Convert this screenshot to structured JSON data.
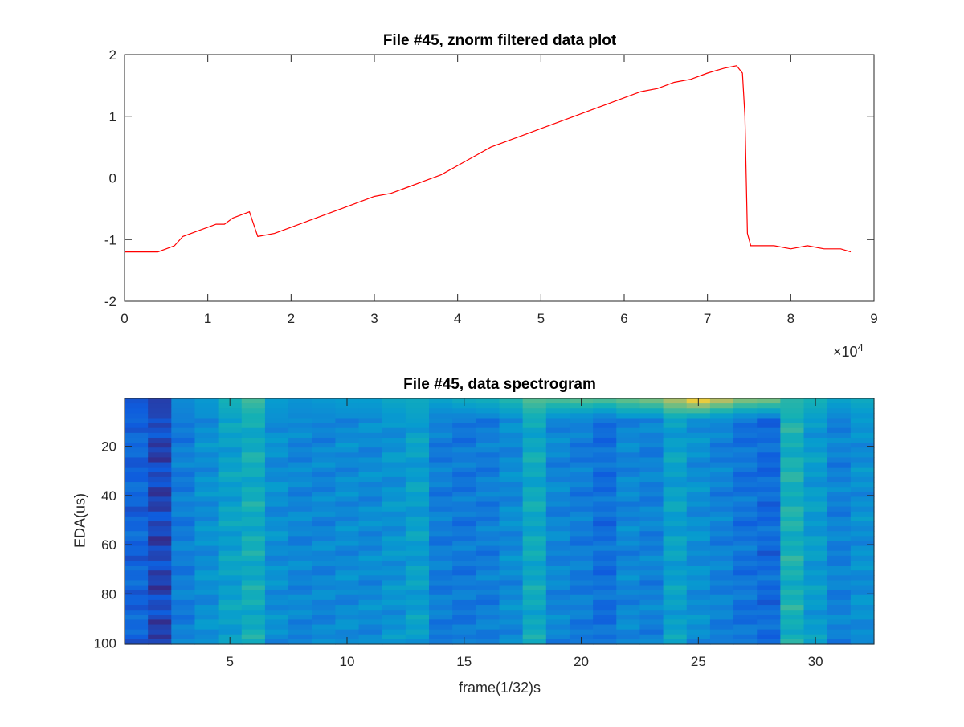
{
  "chart_data": [
    {
      "type": "line",
      "title": "File #45, znorm filtered data plot",
      "xlabel": "",
      "ylabel": "",
      "x_exponent_label": "×10",
      "x_exponent_power": "4",
      "xlim": [
        0,
        90000
      ],
      "ylim": [
        -2,
        2
      ],
      "x_ticks": [
        0,
        10000,
        20000,
        30000,
        40000,
        50000,
        60000,
        70000,
        80000,
        90000
      ],
      "x_tick_labels": [
        "0",
        "1",
        "2",
        "3",
        "4",
        "5",
        "6",
        "7",
        "8",
        "9"
      ],
      "y_ticks": [
        2,
        1,
        0,
        -1,
        -2
      ],
      "y_tick_labels": [
        "2",
        "1",
        "0",
        "-1",
        "-2"
      ],
      "grid": false,
      "series": [
        {
          "color": "#ff0000",
          "x": [
            0,
            4000,
            5000,
            6000,
            7000,
            8000,
            9000,
            10000,
            11000,
            12000,
            13000,
            14000,
            15000,
            16000,
            18000,
            20000,
            22000,
            24000,
            26000,
            28000,
            30000,
            32000,
            34000,
            36000,
            38000,
            40000,
            42000,
            44000,
            46000,
            48000,
            50000,
            52000,
            54000,
            56000,
            58000,
            60000,
            62000,
            64000,
            66000,
            68000,
            70000,
            72000,
            73500,
            74200,
            74500,
            74800,
            75200,
            76000,
            78000,
            80000,
            82000,
            84000,
            86000,
            87200
          ],
          "y": [
            -1.2,
            -1.2,
            -1.15,
            -1.1,
            -0.95,
            -0.9,
            -0.85,
            -0.8,
            -0.75,
            -0.75,
            -0.65,
            -0.6,
            -0.55,
            -0.95,
            -0.9,
            -0.8,
            -0.7,
            -0.6,
            -0.5,
            -0.4,
            -0.3,
            -0.25,
            -0.15,
            -0.05,
            0.05,
            0.2,
            0.35,
            0.5,
            0.6,
            0.7,
            0.8,
            0.9,
            1.0,
            1.1,
            1.2,
            1.3,
            1.4,
            1.45,
            1.55,
            1.6,
            1.7,
            1.78,
            1.82,
            1.7,
            1.0,
            -0.9,
            -1.1,
            -1.1,
            -1.1,
            -1.15,
            -1.1,
            -1.15,
            -1.15,
            -1.2
          ]
        }
      ]
    },
    {
      "type": "heatmap",
      "title": "File #45, data spectrogram",
      "xlabel": "frame(1/32)s",
      "ylabel": "EDA(us)",
      "n_cols": 32,
      "n_rows": 50,
      "x_ticks": [
        5,
        10,
        15,
        20,
        25,
        30
      ],
      "x_tick_labels": [
        "5",
        "10",
        "15",
        "20",
        "25",
        "30"
      ],
      "y_ticks": [
        20,
        40,
        60,
        80,
        100
      ],
      "y_tick_labels": [
        "20",
        "40",
        "60",
        "80",
        "100"
      ],
      "xlim": [
        0.5,
        32.5
      ],
      "ylim": [
        0.5,
        100.5
      ],
      "colormap": "parula",
      "column_levels": [
        0.18,
        0.08,
        0.28,
        0.36,
        0.45,
        0.52,
        0.36,
        0.32,
        0.32,
        0.34,
        0.34,
        0.38,
        0.44,
        0.28,
        0.26,
        0.28,
        0.34,
        0.5,
        0.32,
        0.28,
        0.22,
        0.32,
        0.3,
        0.45,
        0.36,
        0.3,
        0.24,
        0.2,
        0.55,
        0.42,
        0.3,
        0.36
      ],
      "top_band_levels": [
        0.12,
        0.06,
        0.34,
        0.4,
        0.55,
        0.65,
        0.42,
        0.38,
        0.4,
        0.42,
        0.42,
        0.48,
        0.5,
        0.45,
        0.5,
        0.52,
        0.58,
        0.68,
        0.66,
        0.68,
        0.66,
        0.7,
        0.74,
        0.84,
        0.95,
        0.86,
        0.76,
        0.74,
        0.6,
        0.55,
        0.45,
        0.5
      ],
      "grid": false
    }
  ]
}
